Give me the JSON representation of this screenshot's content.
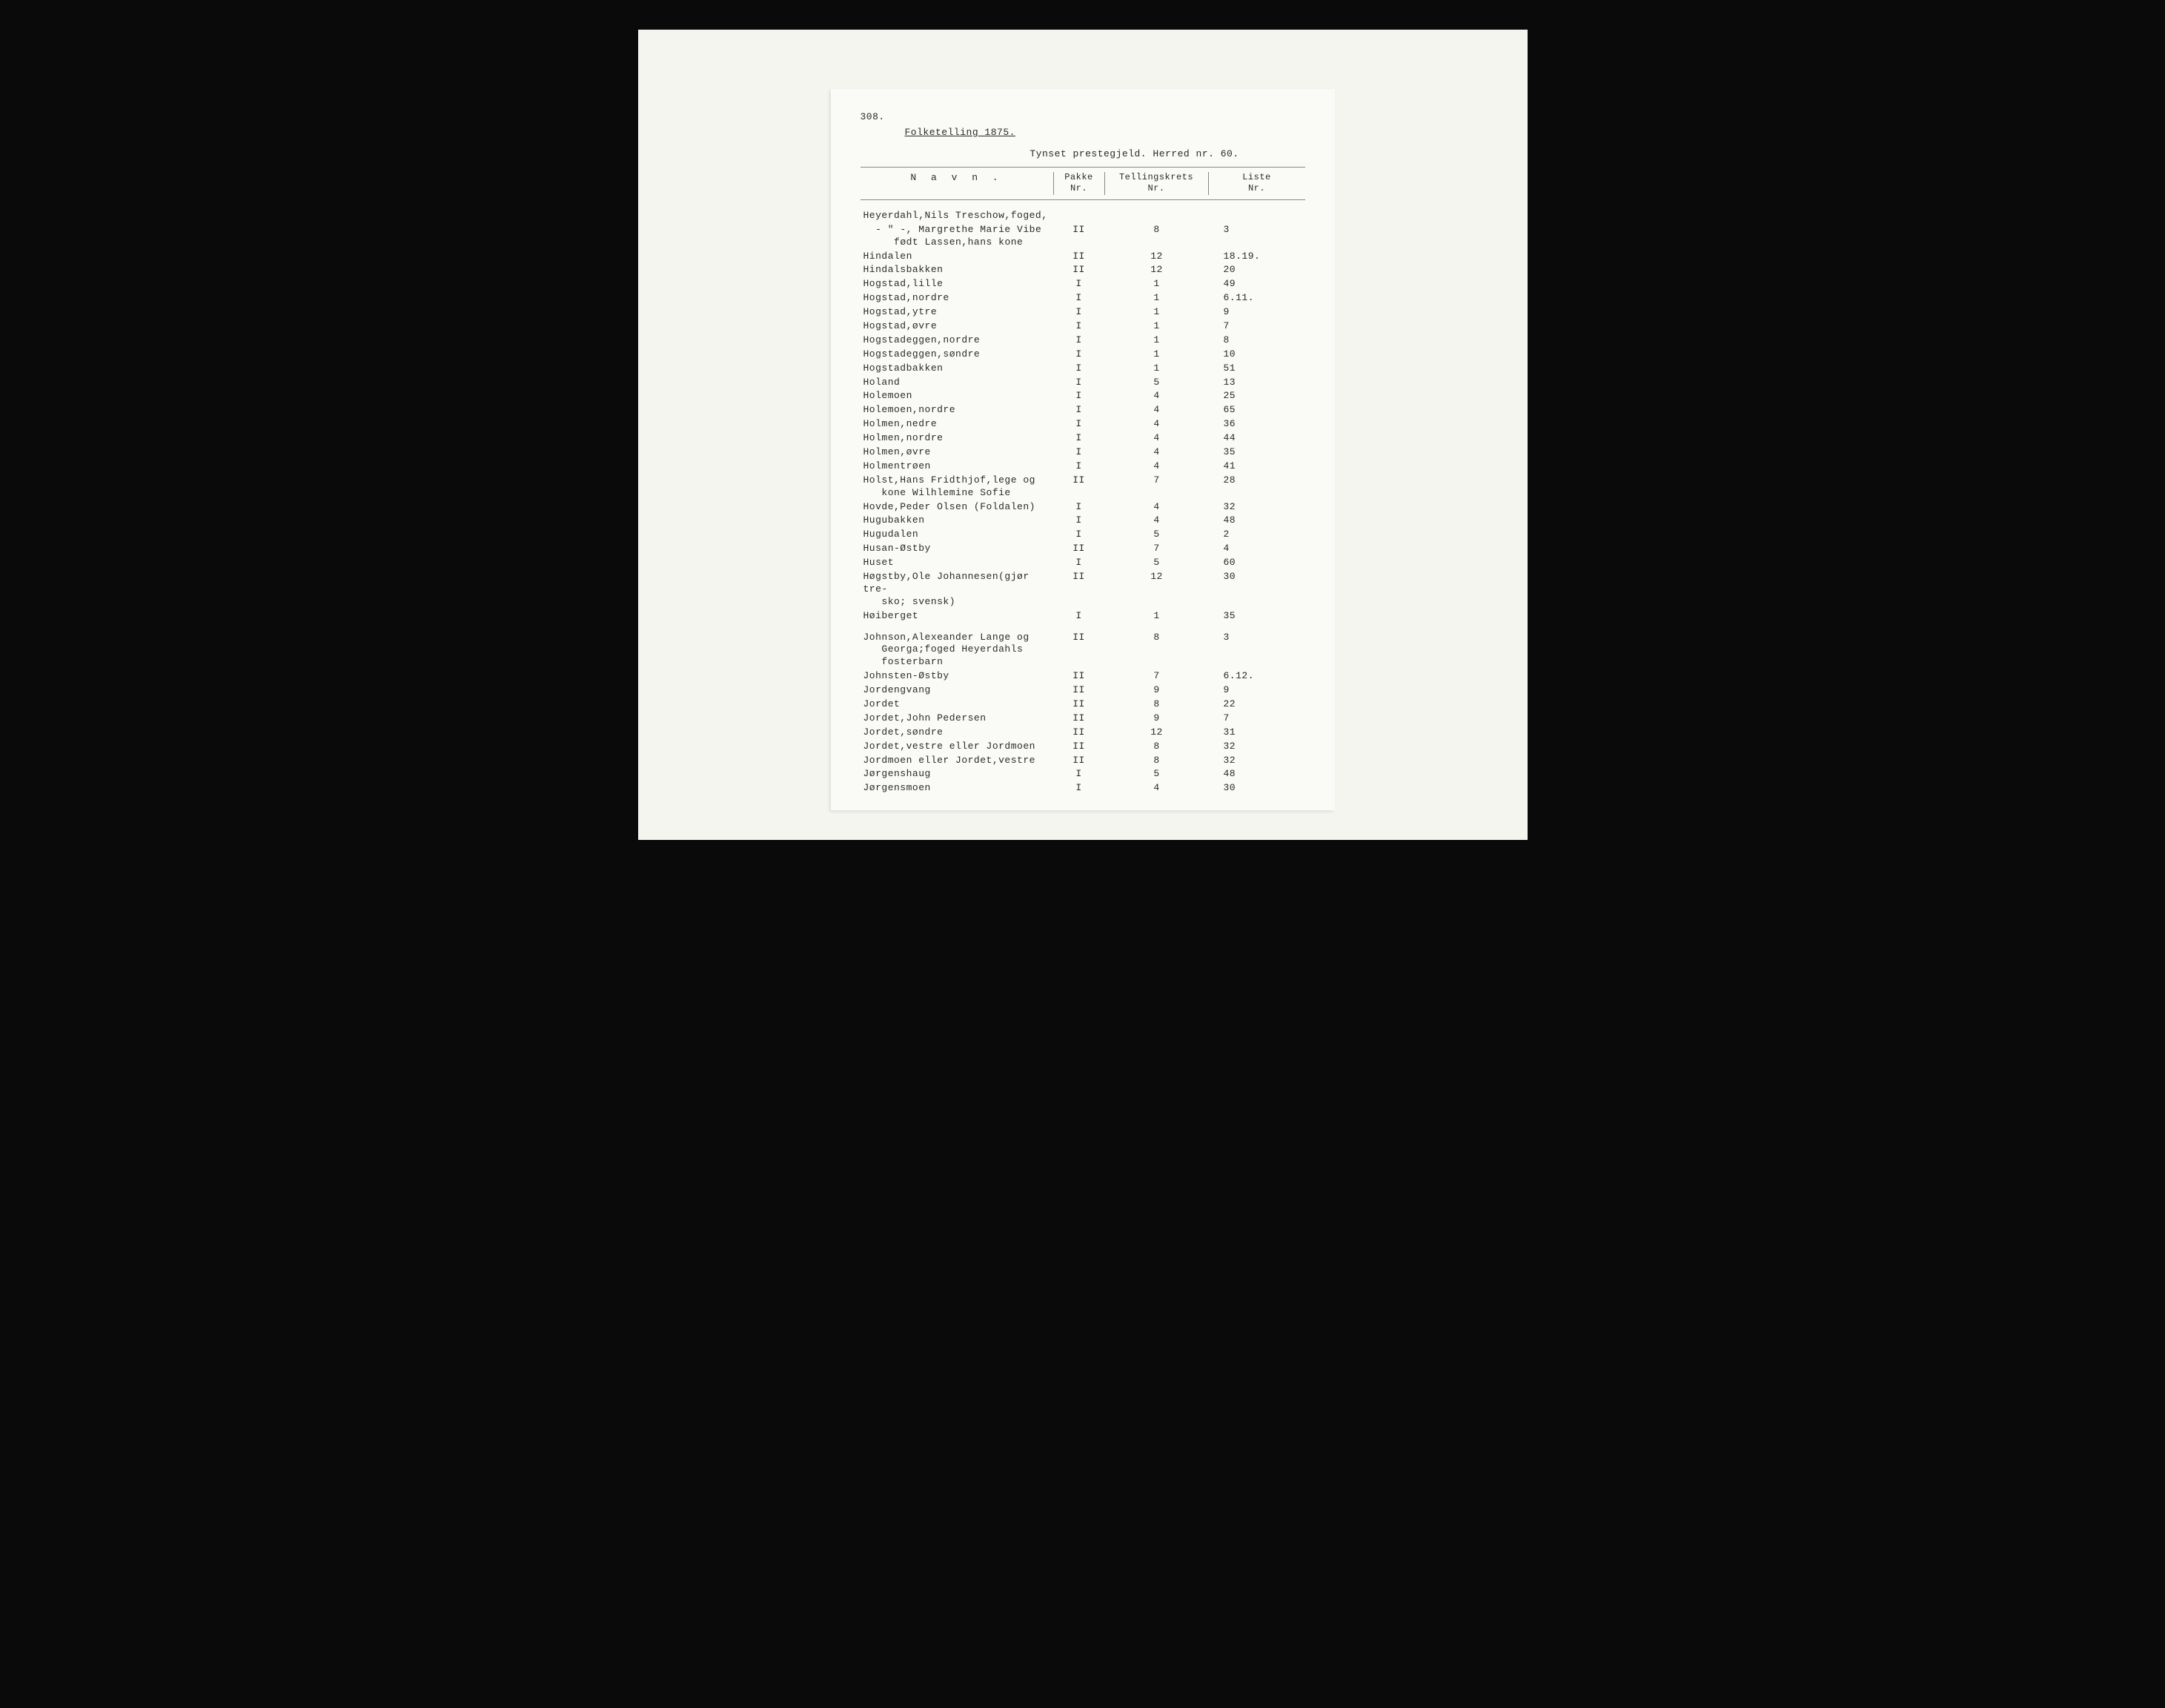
{
  "page_number": "308.",
  "title": "Folketelling 1875.",
  "subtitle": "Tynset prestegjeld. Herred nr. 60.",
  "headers": {
    "name": "N a v n .",
    "pakke": "Pakke\nNr.",
    "telling": "Tellingskrets\nNr.",
    "liste": "Liste\nNr."
  },
  "rows": [
    {
      "name": "Heyerdahl,Nils Treschow,foged,",
      "pakke": "",
      "telling": "",
      "liste": ""
    },
    {
      "name": "  - \" -, Margrethe Marie Vibe\n     født Lassen,hans kone",
      "pakke": "II",
      "telling": "8",
      "liste": "3"
    },
    {
      "name": "Hindalen",
      "pakke": "II",
      "telling": "12",
      "liste": "18.19."
    },
    {
      "name": "Hindalsbakken",
      "pakke": "II",
      "telling": "12",
      "liste": "20"
    },
    {
      "name": "Hogstad,lille",
      "pakke": "I",
      "telling": "1",
      "liste": "49"
    },
    {
      "name": "Hogstad,nordre",
      "pakke": "I",
      "telling": "1",
      "liste": "6.11."
    },
    {
      "name": "Hogstad,ytre",
      "pakke": "I",
      "telling": "1",
      "liste": "9"
    },
    {
      "name": "Hogstad,øvre",
      "pakke": "I",
      "telling": "1",
      "liste": "7"
    },
    {
      "name": "Hogstadeggen,nordre",
      "pakke": "I",
      "telling": "1",
      "liste": "8"
    },
    {
      "name": "Hogstadeggen,søndre",
      "pakke": "I",
      "telling": "1",
      "liste": "10"
    },
    {
      "name": "Hogstadbakken",
      "pakke": "I",
      "telling": "1",
      "liste": "51"
    },
    {
      "name": "Holand",
      "pakke": "I",
      "telling": "5",
      "liste": "13"
    },
    {
      "name": "Holemoen",
      "pakke": "I",
      "telling": "4",
      "liste": "25"
    },
    {
      "name": "Holemoen,nordre",
      "pakke": "I",
      "telling": "4",
      "liste": "65"
    },
    {
      "name": "Holmen,nedre",
      "pakke": "I",
      "telling": "4",
      "liste": "36"
    },
    {
      "name": "Holmen,nordre",
      "pakke": "I",
      "telling": "4",
      "liste": "44"
    },
    {
      "name": "Holmen,øvre",
      "pakke": "I",
      "telling": "4",
      "liste": "35"
    },
    {
      "name": "Holmentrøen",
      "pakke": "I",
      "telling": "4",
      "liste": "41"
    },
    {
      "name": "Holst,Hans Fridthjof,lege og\n   kone Wilhlemine Sofie",
      "pakke": "II",
      "telling": "7",
      "liste": "28"
    },
    {
      "name": "Hovde,Peder Olsen (Foldalen)",
      "pakke": "I",
      "telling": "4",
      "liste": "32"
    },
    {
      "name": "Hugubakken",
      "pakke": "I",
      "telling": "4",
      "liste": "48"
    },
    {
      "name": "Hugudalen",
      "pakke": "I",
      "telling": "5",
      "liste": "2"
    },
    {
      "name": "Husan-Østby",
      "pakke": "II",
      "telling": "7",
      "liste": "4"
    },
    {
      "name": "Huset",
      "pakke": "I",
      "telling": "5",
      "liste": "60"
    },
    {
      "name": "Høgstby,Ole Johannesen(gjør tre-\n   sko; svensk)",
      "pakke": "II",
      "telling": "12",
      "liste": "30"
    },
    {
      "name": "Høiberget",
      "pakke": "I",
      "telling": "1",
      "liste": "35"
    },
    {
      "spacer": true
    },
    {
      "name": "Johnson,Alexeander Lange og\n   Georga;foged Heyerdahls\n   fosterbarn",
      "pakke": "II",
      "telling": "8",
      "liste": "3"
    },
    {
      "name": "Johnsten-Østby",
      "pakke": "II",
      "telling": "7",
      "liste": "6.12."
    },
    {
      "name": "Jordengvang",
      "pakke": "II",
      "telling": "9",
      "liste": "9"
    },
    {
      "name": "Jordet",
      "pakke": "II",
      "telling": "8",
      "liste": "22"
    },
    {
      "name": "Jordet,John Pedersen",
      "pakke": "II",
      "telling": "9",
      "liste": "7"
    },
    {
      "name": "Jordet,søndre",
      "pakke": "II",
      "telling": "12",
      "liste": "31"
    },
    {
      "name": "Jordet,vestre eller Jordmoen",
      "pakke": "II",
      "telling": "8",
      "liste": "32"
    },
    {
      "name": "Jordmoen eller Jordet,vestre",
      "pakke": "II",
      "telling": "8",
      "liste": "32"
    },
    {
      "name": "Jørgenshaug",
      "pakke": "I",
      "telling": "5",
      "liste": "48"
    },
    {
      "name": "Jørgensmoen",
      "pakke": "I",
      "telling": "4",
      "liste": "30"
    }
  ]
}
